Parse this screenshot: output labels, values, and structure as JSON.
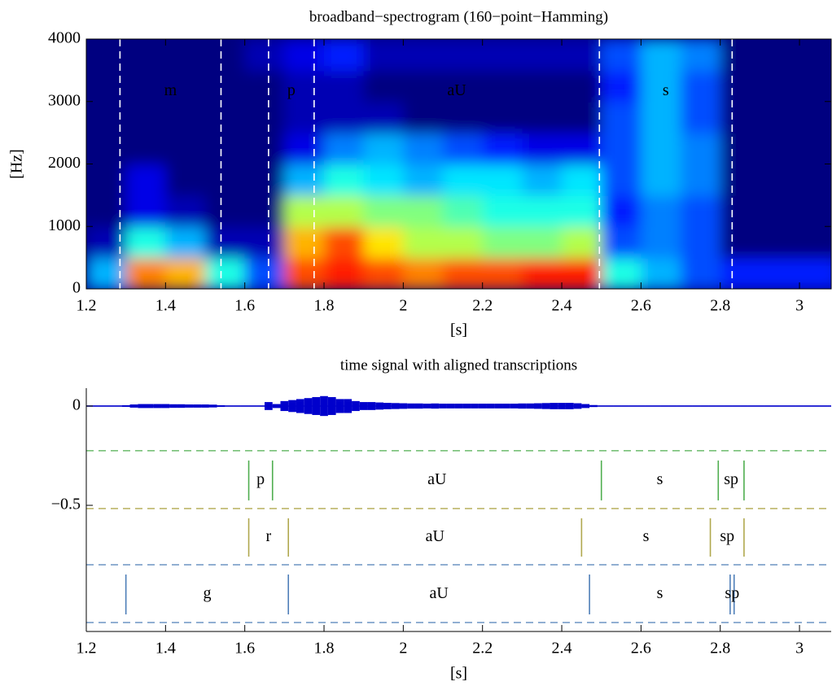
{
  "chart_data": [
    {
      "type": "heatmap",
      "title": "broadband−spectrogram  (160−point−Hamming)",
      "x_label": "[s]",
      "y_label": "[Hz]",
      "colormap": "jet",
      "x": [
        1.25,
        1.35,
        1.45,
        1.55,
        1.65,
        1.75,
        1.85,
        1.95,
        2.05,
        2.15,
        2.25,
        2.35,
        2.45,
        2.55,
        2.65,
        2.75,
        2.85,
        2.95,
        3.05
      ],
      "y": [
        250,
        750,
        1250,
        1750,
        2250,
        2750,
        3250,
        3750
      ],
      "values": [
        [
          0.3,
          0.05,
          0,
          0,
          0,
          0,
          0,
          0
        ],
        [
          0.75,
          0.4,
          0.1,
          0.1,
          0,
          0,
          0,
          0
        ],
        [
          0.7,
          0.3,
          0.05,
          0,
          0,
          0,
          0,
          0
        ],
        [
          0.4,
          0.05,
          0,
          0,
          0,
          0,
          0,
          0
        ],
        [
          0.2,
          0.05,
          0,
          0,
          0,
          0,
          0,
          0.05
        ],
        [
          0.8,
          0.7,
          0.55,
          0.3,
          0.1,
          0.05,
          0.05,
          0.1
        ],
        [
          0.85,
          0.8,
          0.55,
          0.4,
          0.25,
          0.05,
          0.05,
          0.15
        ],
        [
          0.8,
          0.65,
          0.5,
          0.35,
          0.3,
          0.05,
          0,
          0.05
        ],
        [
          0.75,
          0.55,
          0.5,
          0.3,
          0.25,
          0,
          0,
          0.05
        ],
        [
          0.8,
          0.55,
          0.45,
          0.35,
          0.2,
          0,
          0,
          0.05
        ],
        [
          0.8,
          0.5,
          0.4,
          0.35,
          0.15,
          0,
          0,
          0.05
        ],
        [
          0.85,
          0.5,
          0.4,
          0.3,
          0.1,
          0,
          0,
          0.05
        ],
        [
          0.85,
          0.55,
          0.4,
          0.35,
          0.1,
          0,
          0,
          0.05
        ],
        [
          0.4,
          0.2,
          0.15,
          0.2,
          0.2,
          0.2,
          0.15,
          0.2
        ],
        [
          0.3,
          0.25,
          0.25,
          0.3,
          0.3,
          0.3,
          0.3,
          0.3
        ],
        [
          0.2,
          0.2,
          0.2,
          0.25,
          0.25,
          0.2,
          0.2,
          0.25
        ],
        [
          0.15,
          0,
          0,
          0,
          0,
          0,
          0,
          0
        ],
        [
          0.15,
          0,
          0,
          0,
          0,
          0,
          0,
          0
        ],
        [
          0.15,
          0,
          0,
          0,
          0,
          0,
          0,
          0
        ]
      ],
      "xlim": [
        1.2,
        3.08
      ],
      "ylim": [
        0,
        4000
      ],
      "xticks": [
        1.2,
        1.4,
        1.6,
        1.8,
        2,
        2.2,
        2.4,
        2.6,
        2.8,
        3
      ],
      "yticks": [
        0,
        1000,
        2000,
        3000,
        4000
      ],
      "segments": {
        "color": "#ffffff",
        "boundaries": [
          1.285,
          1.54,
          1.66,
          1.775,
          2.495,
          2.83
        ],
        "labels": [
          "m",
          null,
          "p",
          "aU",
          "s"
        ]
      }
    },
    {
      "type": "area",
      "title": "time signal with aligned transcriptions",
      "x_label": "[s]",
      "color": "#0000cc",
      "x": [
        1.2,
        1.22,
        1.24,
        1.26,
        1.28,
        1.3,
        1.32,
        1.34,
        1.36,
        1.38,
        1.4,
        1.42,
        1.44,
        1.46,
        1.48,
        1.5,
        1.52,
        1.54,
        1.56,
        1.58,
        1.6,
        1.62,
        1.64,
        1.66,
        1.68,
        1.7,
        1.72,
        1.74,
        1.76,
        1.78,
        1.8,
        1.82,
        1.84,
        1.86,
        1.88,
        1.9,
        1.92,
        1.94,
        1.96,
        1.98,
        2,
        2.02,
        2.04,
        2.06,
        2.08,
        2.1,
        2.12,
        2.14,
        2.16,
        2.18,
        2.2,
        2.22,
        2.24,
        2.26,
        2.28,
        2.3,
        2.32,
        2.34,
        2.36,
        2.38,
        2.4,
        2.42,
        2.44,
        2.46,
        2.48,
        2.5,
        2.52,
        2.54,
        2.56,
        2.58,
        2.6,
        2.62,
        2.64,
        2.66,
        2.68,
        2.7,
        2.72,
        2.74,
        2.76,
        2.78,
        2.8,
        2.82,
        2.84,
        2.86,
        2.88,
        2.9,
        2.92,
        2.94,
        2.96,
        2.98,
        3,
        3.02,
        3.04,
        3.06,
        3.08
      ],
      "values": [
        0.002,
        0.002,
        0.002,
        0.002,
        0.002,
        0.004,
        0.008,
        0.01,
        0.01,
        0.01,
        0.01,
        0.009,
        0.009,
        0.008,
        0.008,
        0.008,
        0.007,
        0.004,
        0.002,
        0.002,
        0.002,
        0.002,
        0.002,
        0.02,
        0.01,
        0.025,
        0.03,
        0.035,
        0.04,
        0.045,
        0.05,
        0.045,
        0.035,
        0.035,
        0.025,
        0.02,
        0.02,
        0.018,
        0.016,
        0.015,
        0.014,
        0.013,
        0.013,
        0.012,
        0.013,
        0.012,
        0.012,
        0.012,
        0.012,
        0.012,
        0.012,
        0.012,
        0.012,
        0.012,
        0.012,
        0.013,
        0.013,
        0.014,
        0.015,
        0.016,
        0.016,
        0.016,
        0.014,
        0.01,
        0.005,
        0.003,
        0.003,
        0.003,
        0.003,
        0.003,
        0.003,
        0.003,
        0.003,
        0.003,
        0.003,
        0.003,
        0.003,
        0.003,
        0.003,
        0.003,
        0.003,
        0.003,
        0.003,
        0.002,
        0.002,
        0.002,
        0.002,
        0.002,
        0.002,
        0.002,
        0.002,
        0.002,
        0.002,
        0.002,
        0.002
      ],
      "xlim": [
        1.2,
        3.08
      ],
      "ylim": [
        -1.135,
        0.09
      ],
      "xticks": [
        1.2,
        1.4,
        1.6,
        1.8,
        2,
        2.2,
        2.4,
        2.6,
        2.8,
        3
      ],
      "yticks": [
        0,
        {
          "value": -0.5,
          "label": "−0.5"
        }
      ],
      "separators": [
        -0.225,
        -0.516,
        -0.799,
        -1.09
      ],
      "tiers": [
        {
          "color": "#4fae4f",
          "boundaries": [
            1.61,
            1.67,
            2.5,
            2.795,
            2.86
          ],
          "labels": [
            "p",
            "aU",
            "s",
            "sp"
          ]
        },
        {
          "color": "#b0a84e",
          "boundaries": [
            1.61,
            1.71,
            2.45,
            2.775,
            2.86
          ],
          "labels": [
            "r",
            "aU",
            "s",
            "sp"
          ]
        },
        {
          "color": "#4f7fb8",
          "boundaries": [
            1.3,
            1.71,
            2.47,
            2.825,
            2.835
          ],
          "labels": [
            "g",
            "aU",
            "s",
            "sp"
          ]
        }
      ]
    }
  ]
}
